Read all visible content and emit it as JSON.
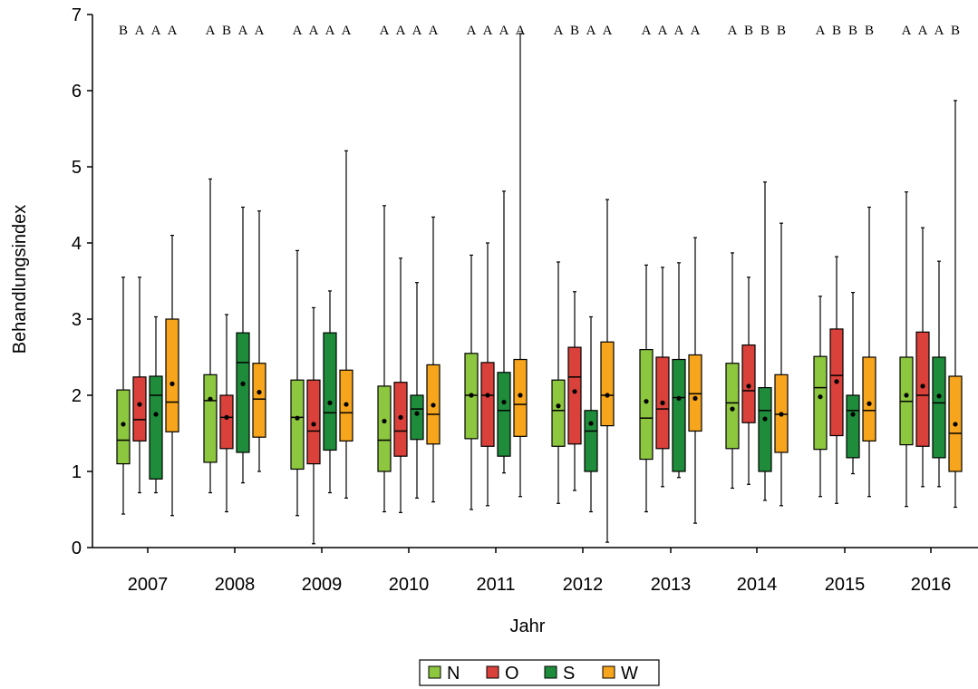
{
  "chart_data": {
    "type": "boxplot",
    "xlabel": "Jahr",
    "ylabel": "Behandlungsindex",
    "ylim": [
      0,
      7
    ],
    "yticks": [
      0,
      1,
      2,
      3,
      4,
      5,
      6,
      7
    ],
    "categories": [
      "2007",
      "2008",
      "2009",
      "2010",
      "2011",
      "2012",
      "2013",
      "2014",
      "2015",
      "2016"
    ],
    "legend_position": "bottom-center",
    "grid": false,
    "series": [
      {
        "name": "N",
        "color": "#8dc63f",
        "boxes": [
          {
            "min": 0.44,
            "q1": 1.1,
            "median": 1.41,
            "q3": 2.07,
            "max": 3.55,
            "mean": 1.62,
            "letter": "B"
          },
          {
            "min": 0.72,
            "q1": 1.12,
            "median": 1.93,
            "q3": 2.27,
            "max": 4.84,
            "mean": 1.95,
            "letter": "A"
          },
          {
            "min": 0.42,
            "q1": 1.03,
            "median": 1.71,
            "q3": 2.2,
            "max": 3.9,
            "mean": 1.7,
            "letter": "A"
          },
          {
            "min": 0.47,
            "q1": 1.0,
            "median": 1.41,
            "q3": 2.12,
            "max": 4.49,
            "mean": 1.66,
            "letter": "A"
          },
          {
            "min": 0.5,
            "q1": 1.43,
            "median": 2.0,
            "q3": 2.55,
            "max": 3.84,
            "mean": 2.0,
            "letter": "A"
          },
          {
            "min": 0.58,
            "q1": 1.33,
            "median": 1.8,
            "q3": 2.2,
            "max": 3.75,
            "mean": 1.86,
            "letter": "A"
          },
          {
            "min": 0.47,
            "q1": 1.16,
            "median": 1.7,
            "q3": 2.6,
            "max": 3.71,
            "mean": 1.92,
            "letter": "A"
          },
          {
            "min": 0.78,
            "q1": 1.3,
            "median": 1.9,
            "q3": 2.42,
            "max": 3.87,
            "mean": 1.82,
            "letter": "A"
          },
          {
            "min": 0.67,
            "q1": 1.29,
            "median": 2.1,
            "q3": 2.51,
            "max": 3.3,
            "mean": 1.98,
            "letter": "A"
          },
          {
            "min": 0.54,
            "q1": 1.35,
            "median": 1.92,
            "q3": 2.5,
            "max": 4.67,
            "mean": 2.0,
            "letter": "A"
          }
        ]
      },
      {
        "name": "O",
        "color": "#d9413a",
        "boxes": [
          {
            "min": 0.72,
            "q1": 1.4,
            "median": 1.68,
            "q3": 2.24,
            "max": 3.55,
            "mean": 1.88,
            "letter": "A"
          },
          {
            "min": 0.47,
            "q1": 1.3,
            "median": 1.71,
            "q3": 2.0,
            "max": 3.06,
            "mean": 1.71,
            "letter": "B"
          },
          {
            "min": 0.05,
            "q1": 1.1,
            "median": 1.53,
            "q3": 2.2,
            "max": 3.15,
            "mean": 1.62,
            "letter": "A"
          },
          {
            "min": 0.46,
            "q1": 1.2,
            "median": 1.53,
            "q3": 2.17,
            "max": 3.8,
            "mean": 1.71,
            "letter": "A"
          },
          {
            "min": 0.55,
            "q1": 1.33,
            "median": 2.0,
            "q3": 2.43,
            "max": 4.0,
            "mean": 2.0,
            "letter": "A"
          },
          {
            "min": 0.75,
            "q1": 1.36,
            "median": 2.24,
            "q3": 2.63,
            "max": 3.36,
            "mean": 2.05,
            "letter": "B"
          },
          {
            "min": 0.8,
            "q1": 1.3,
            "median": 1.82,
            "q3": 2.5,
            "max": 3.68,
            "mean": 1.9,
            "letter": "A"
          },
          {
            "min": 0.83,
            "q1": 1.64,
            "median": 2.06,
            "q3": 2.66,
            "max": 3.55,
            "mean": 2.12,
            "letter": "B"
          },
          {
            "min": 0.58,
            "q1": 1.47,
            "median": 2.26,
            "q3": 2.87,
            "max": 3.82,
            "mean": 2.18,
            "letter": "B"
          },
          {
            "min": 0.8,
            "q1": 1.33,
            "median": 2.0,
            "q3": 2.83,
            "max": 4.2,
            "mean": 2.12,
            "letter": "A"
          }
        ]
      },
      {
        "name": "S",
        "color": "#1e8c3a",
        "boxes": [
          {
            "min": 0.72,
            "q1": 0.9,
            "median": 2.0,
            "q3": 2.25,
            "max": 3.03,
            "mean": 1.75,
            "letter": "A"
          },
          {
            "min": 0.85,
            "q1": 1.25,
            "median": 2.43,
            "q3": 2.82,
            "max": 4.47,
            "mean": 2.15,
            "letter": "A"
          },
          {
            "min": 0.72,
            "q1": 1.28,
            "median": 1.77,
            "q3": 2.82,
            "max": 3.37,
            "mean": 1.9,
            "letter": "A"
          },
          {
            "min": 0.65,
            "q1": 1.42,
            "median": 1.82,
            "q3": 2.0,
            "max": 3.48,
            "mean": 1.76,
            "letter": "A"
          },
          {
            "min": 0.98,
            "q1": 1.2,
            "median": 1.8,
            "q3": 2.3,
            "max": 4.68,
            "mean": 1.91,
            "letter": "A"
          },
          {
            "min": 0.47,
            "q1": 1.0,
            "median": 1.53,
            "q3": 1.8,
            "max": 3.03,
            "mean": 1.63,
            "letter": "A"
          },
          {
            "min": 0.92,
            "q1": 1.0,
            "median": 1.97,
            "q3": 2.47,
            "max": 3.74,
            "mean": 1.96,
            "letter": "A"
          },
          {
            "min": 0.62,
            "q1": 1.0,
            "median": 1.8,
            "q3": 2.1,
            "max": 4.8,
            "mean": 1.69,
            "letter": "B"
          },
          {
            "min": 0.97,
            "q1": 1.18,
            "median": 1.8,
            "q3": 2.0,
            "max": 3.35,
            "mean": 1.75,
            "letter": "B"
          },
          {
            "min": 0.8,
            "q1": 1.18,
            "median": 1.9,
            "q3": 2.5,
            "max": 3.76,
            "mean": 1.99,
            "letter": "A"
          }
        ]
      },
      {
        "name": "W",
        "color": "#f7a51c",
        "boxes": [
          {
            "min": 0.42,
            "q1": 1.52,
            "median": 1.91,
            "q3": 3.0,
            "max": 4.1,
            "mean": 2.15,
            "letter": "A"
          },
          {
            "min": 1.0,
            "q1": 1.45,
            "median": 1.95,
            "q3": 2.42,
            "max": 4.42,
            "mean": 2.04,
            "letter": "A"
          },
          {
            "min": 0.65,
            "q1": 1.4,
            "median": 1.77,
            "q3": 2.33,
            "max": 5.21,
            "mean": 1.88,
            "letter": "A"
          },
          {
            "min": 0.6,
            "q1": 1.36,
            "median": 1.75,
            "q3": 2.4,
            "max": 4.34,
            "mean": 1.87,
            "letter": "A"
          },
          {
            "min": 0.67,
            "q1": 1.46,
            "median": 1.88,
            "q3": 2.47,
            "max": 6.75,
            "mean": 2.0,
            "letter": "A"
          },
          {
            "min": 0.07,
            "q1": 1.6,
            "median": 2.0,
            "q3": 2.7,
            "max": 4.57,
            "mean": 2.0,
            "letter": "A"
          },
          {
            "min": 0.32,
            "q1": 1.53,
            "median": 2.02,
            "q3": 2.53,
            "max": 4.07,
            "mean": 1.96,
            "letter": "A"
          },
          {
            "min": 0.55,
            "q1": 1.25,
            "median": 1.75,
            "q3": 2.27,
            "max": 4.26,
            "mean": 1.75,
            "letter": "B"
          },
          {
            "min": 0.67,
            "q1": 1.4,
            "median": 1.8,
            "q3": 2.5,
            "max": 4.47,
            "mean": 1.89,
            "letter": "B"
          },
          {
            "min": 0.53,
            "q1": 1.0,
            "median": 1.5,
            "q3": 2.25,
            "max": 5.87,
            "mean": 1.62,
            "letter": "B"
          }
        ]
      }
    ]
  }
}
